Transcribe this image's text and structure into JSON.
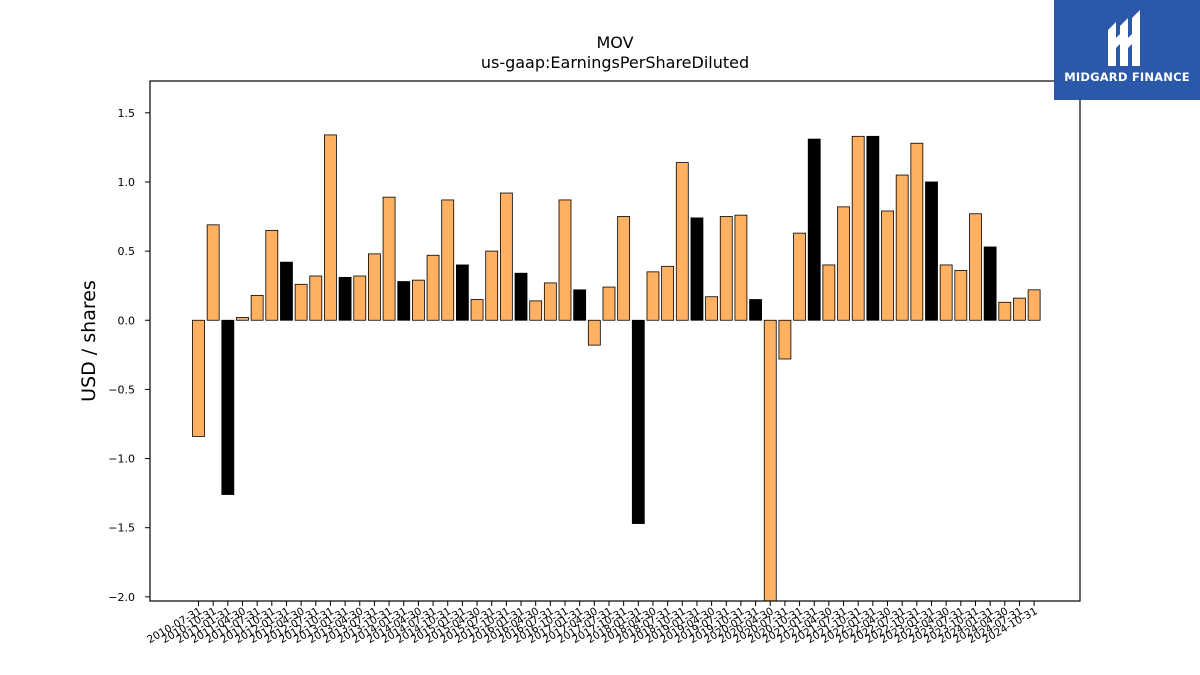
{
  "chart_data": {
    "type": "bar",
    "title": "MOV",
    "subtitle": "us-gaap:EarningsPerShareDiluted",
    "xlabel": "",
    "ylabel": "USD / shares",
    "ylim": [
      -2.03,
      1.73
    ],
    "yticks": [
      -2.0,
      -1.5,
      -1.0,
      -0.5,
      0.0,
      0.5,
      1.0,
      1.5
    ],
    "grid": false,
    "colors": {
      "quarterly": "#ffb060",
      "annual": "#000000",
      "edge": "#000000"
    },
    "categories": [
      "2010-07-31",
      "2010-10-31",
      "2011-01-31",
      "2011-04-30",
      "2011-07-31",
      "2011-10-31",
      "2012-01-31",
      "2012-04-30",
      "2012-07-31",
      "2012-10-31",
      "2013-01-31",
      "2013-04-30",
      "2013-07-31",
      "2013-10-31",
      "2014-01-31",
      "2014-04-30",
      "2014-07-31",
      "2014-10-31",
      "2015-01-31",
      "2015-04-30",
      "2015-07-31",
      "2015-10-31",
      "2016-01-31",
      "2016-04-30",
      "2016-07-31",
      "2016-10-31",
      "2017-01-31",
      "2017-04-30",
      "2017-07-31",
      "2017-10-31",
      "2018-01-31",
      "2018-04-30",
      "2018-07-31",
      "2018-10-31",
      "2019-01-31",
      "2019-04-30",
      "2019-07-31",
      "2019-10-31",
      "2020-01-31",
      "2020-04-30",
      "2020-07-31",
      "2020-10-31",
      "2021-01-31",
      "2021-04-30",
      "2021-07-31",
      "2021-10-31",
      "2022-01-31",
      "2022-04-30",
      "2022-07-31",
      "2022-10-31",
      "2023-01-31",
      "2023-04-30",
      "2023-07-31",
      "2023-10-31",
      "2024-01-31",
      "2024-04-30",
      "2024-07-31",
      "2024-10-31"
    ],
    "values": [
      -0.84,
      0.69,
      -1.26,
      0.02,
      0.18,
      0.65,
      0.42,
      0.26,
      0.32,
      1.34,
      0.31,
      0.32,
      0.48,
      0.89,
      0.28,
      0.29,
      0.47,
      0.87,
      0.4,
      0.15,
      0.5,
      0.92,
      0.34,
      0.14,
      0.27,
      0.87,
      0.22,
      -0.18,
      0.24,
      0.75,
      -1.47,
      0.35,
      0.39,
      1.14,
      0.74,
      0.17,
      0.75,
      0.76,
      0.15,
      -2.03,
      -0.28,
      0.63,
      1.31,
      0.4,
      0.82,
      1.33,
      1.33,
      0.79,
      1.05,
      1.28,
      1.0,
      0.4,
      0.36,
      0.77,
      0.53,
      0.13,
      0.16,
      0.22
    ],
    "annual": [
      false,
      false,
      true,
      false,
      false,
      false,
      true,
      false,
      false,
      false,
      true,
      false,
      false,
      false,
      true,
      false,
      false,
      false,
      true,
      false,
      false,
      false,
      true,
      false,
      false,
      false,
      true,
      false,
      false,
      false,
      true,
      false,
      false,
      false,
      true,
      false,
      false,
      false,
      true,
      false,
      false,
      false,
      true,
      false,
      false,
      false,
      true,
      false,
      false,
      false,
      true,
      false,
      false,
      false,
      true,
      false,
      false,
      false
    ]
  },
  "logo": {
    "text": "MIDGARD FINANCE"
  }
}
